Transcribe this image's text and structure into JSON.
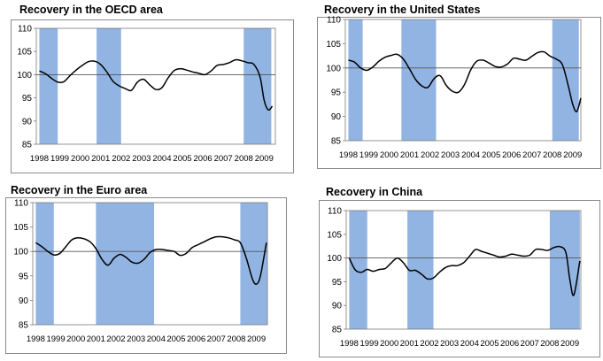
{
  "chart_data": [
    {
      "type": "line",
      "title": "Recovery in the OECD area",
      "categories": [
        "1998",
        "1999",
        "2000",
        "2001",
        "2002",
        "2003",
        "2004",
        "2005",
        "2006",
        "2007",
        "2008",
        "2009"
      ],
      "ylim": [
        85,
        110
      ],
      "yticks": [
        85,
        90,
        95,
        100,
        105,
        110
      ],
      "reference_line": 100,
      "shaded_periods": [
        [
          1998.0,
          1998.9
        ],
        [
          2000.8,
          2002.0
        ],
        [
          2008.0,
          2009.35
        ]
      ],
      "series": [
        {
          "x": [
            1998.0,
            1998.3,
            1998.6,
            1998.9,
            1999.2,
            1999.5,
            1999.8,
            2000.1,
            2000.4,
            2000.7,
            2001.0,
            2001.3,
            2001.6,
            2001.9,
            2002.2,
            2002.5,
            2002.8,
            2003.1,
            2003.4,
            2003.7,
            2004.0,
            2004.3,
            2004.6,
            2004.9,
            2005.2,
            2005.5,
            2005.8,
            2006.1,
            2006.4,
            2006.7,
            2007.0,
            2007.3,
            2007.6,
            2007.9,
            2008.2,
            2008.5,
            2008.8,
            2009.0,
            2009.2,
            2009.4
          ],
          "y": [
            100.8,
            100.2,
            99.2,
            98.4,
            98.5,
            99.8,
            101.0,
            102.0,
            102.8,
            102.9,
            102.2,
            100.6,
            98.6,
            97.6,
            97.0,
            96.6,
            98.4,
            99.0,
            97.8,
            96.8,
            97.2,
            99.3,
            100.9,
            101.3,
            101.0,
            100.6,
            100.3,
            100.0,
            100.8,
            102.0,
            102.2,
            102.6,
            103.2,
            103.0,
            102.6,
            102.2,
            99.5,
            94.5,
            92.4,
            93.2
          ]
        }
      ]
    },
    {
      "type": "line",
      "title": "Recovery in the United States",
      "categories": [
        "1998",
        "1999",
        "2000",
        "2001",
        "2002",
        "2003",
        "2004",
        "2005",
        "2006",
        "2007",
        "2008",
        "2009"
      ],
      "ylim": [
        85,
        110
      ],
      "yticks": [
        85,
        90,
        95,
        100,
        105,
        110
      ],
      "reference_line": 100,
      "shaded_periods": [
        [
          1998.0,
          1998.7
        ],
        [
          2000.6,
          2002.3
        ],
        [
          2008.0,
          2009.3
        ]
      ],
      "series": [
        {
          "x": [
            1998.0,
            1998.3,
            1998.6,
            1998.9,
            1999.2,
            1999.5,
            1999.8,
            2000.1,
            2000.4,
            2000.7,
            2001.0,
            2001.3,
            2001.6,
            2001.9,
            2002.2,
            2002.5,
            2002.8,
            2003.1,
            2003.4,
            2003.7,
            2004.0,
            2004.3,
            2004.6,
            2004.9,
            2005.2,
            2005.5,
            2005.8,
            2006.1,
            2006.4,
            2006.7,
            2007.0,
            2007.3,
            2007.6,
            2007.9,
            2008.2,
            2008.5,
            2008.8,
            2009.0,
            2009.2,
            2009.4
          ],
          "y": [
            101.6,
            101.2,
            100.0,
            99.5,
            100.2,
            101.4,
            102.2,
            102.6,
            102.8,
            101.8,
            99.8,
            97.6,
            96.3,
            96.0,
            97.8,
            98.4,
            96.4,
            95.2,
            95.0,
            96.6,
            99.6,
            101.4,
            101.6,
            101.0,
            100.3,
            100.2,
            100.8,
            102.0,
            101.8,
            101.6,
            102.4,
            103.2,
            103.3,
            102.4,
            101.8,
            100.6,
            96.0,
            92.5,
            91.0,
            93.8
          ]
        }
      ]
    },
    {
      "type": "line",
      "title": "Recovery in the Euro area",
      "categories": [
        "1998",
        "1999",
        "2000",
        "2001",
        "2002",
        "2003",
        "2004",
        "2005",
        "2006",
        "2007",
        "2008",
        "2009"
      ],
      "ylim": [
        85,
        110
      ],
      "yticks": [
        85,
        90,
        95,
        100,
        105,
        110
      ],
      "reference_line": 100,
      "shaded_periods": [
        [
          1998.0,
          1998.9
        ],
        [
          2001.0,
          2003.9
        ],
        [
          2008.2,
          2009.55
        ]
      ],
      "series": [
        {
          "x": [
            1998.0,
            1998.3,
            1998.6,
            1998.9,
            1999.2,
            1999.5,
            1999.8,
            2000.1,
            2000.4,
            2000.7,
            2001.0,
            2001.3,
            2001.6,
            2001.9,
            2002.2,
            2002.5,
            2002.8,
            2003.1,
            2003.4,
            2003.7,
            2004.0,
            2004.3,
            2004.6,
            2004.9,
            2005.2,
            2005.5,
            2005.8,
            2006.1,
            2006.4,
            2006.7,
            2007.0,
            2007.3,
            2007.6,
            2007.9,
            2008.2,
            2008.5,
            2008.8,
            2009.0,
            2009.2,
            2009.5
          ],
          "y": [
            101.8,
            101.0,
            100.0,
            99.3,
            99.6,
            101.0,
            102.4,
            102.8,
            102.6,
            102.0,
            100.6,
            98.4,
            97.2,
            98.6,
            99.4,
            98.8,
            97.8,
            97.6,
            98.4,
            99.8,
            100.4,
            100.4,
            100.2,
            100.0,
            99.2,
            99.6,
            100.8,
            101.4,
            102.0,
            102.6,
            103.0,
            103.0,
            102.8,
            102.4,
            101.8,
            98.6,
            94.4,
            93.3,
            95.0,
            101.8
          ]
        }
      ]
    },
    {
      "type": "line",
      "title": "Recovery in China",
      "categories": [
        "1998",
        "1999",
        "2000",
        "2001",
        "2002",
        "2003",
        "2004",
        "2005",
        "2006",
        "2007",
        "2008",
        "2009"
      ],
      "ylim": [
        85,
        110
      ],
      "yticks": [
        85,
        90,
        95,
        100,
        105,
        110
      ],
      "reference_line": 100,
      "shaded_periods": [
        [
          1998.0,
          1998.9
        ],
        [
          2000.9,
          2002.2
        ],
        [
          2008.0,
          2009.5
        ]
      ],
      "series": [
        {
          "x": [
            1998.0,
            1998.3,
            1998.6,
            1998.9,
            1999.2,
            1999.5,
            1999.8,
            2000.1,
            2000.4,
            2000.7,
            2001.0,
            2001.3,
            2001.6,
            2001.9,
            2002.2,
            2002.5,
            2002.8,
            2003.1,
            2003.4,
            2003.7,
            2004.0,
            2004.3,
            2004.6,
            2004.9,
            2005.2,
            2005.5,
            2005.8,
            2006.1,
            2006.4,
            2006.7,
            2007.0,
            2007.3,
            2007.6,
            2007.9,
            2008.2,
            2008.5,
            2008.8,
            2009.0,
            2009.2,
            2009.5
          ],
          "y": [
            100.0,
            97.5,
            97.0,
            97.6,
            97.2,
            97.6,
            97.8,
            99.0,
            100.0,
            99.0,
            97.4,
            97.4,
            96.6,
            95.6,
            95.8,
            97.0,
            98.0,
            98.4,
            98.4,
            99.0,
            100.4,
            101.8,
            101.4,
            101.0,
            100.6,
            100.2,
            100.4,
            100.8,
            100.6,
            100.4,
            100.6,
            101.8,
            101.8,
            101.6,
            102.2,
            102.4,
            101.2,
            95.5,
            92.2,
            99.4
          ]
        }
      ]
    }
  ],
  "colors": {
    "shade": "#92b4e3",
    "line": "#000000",
    "reference": "#555555",
    "frame": "#8a8a8a",
    "plot_border": "#7a7a7a"
  }
}
